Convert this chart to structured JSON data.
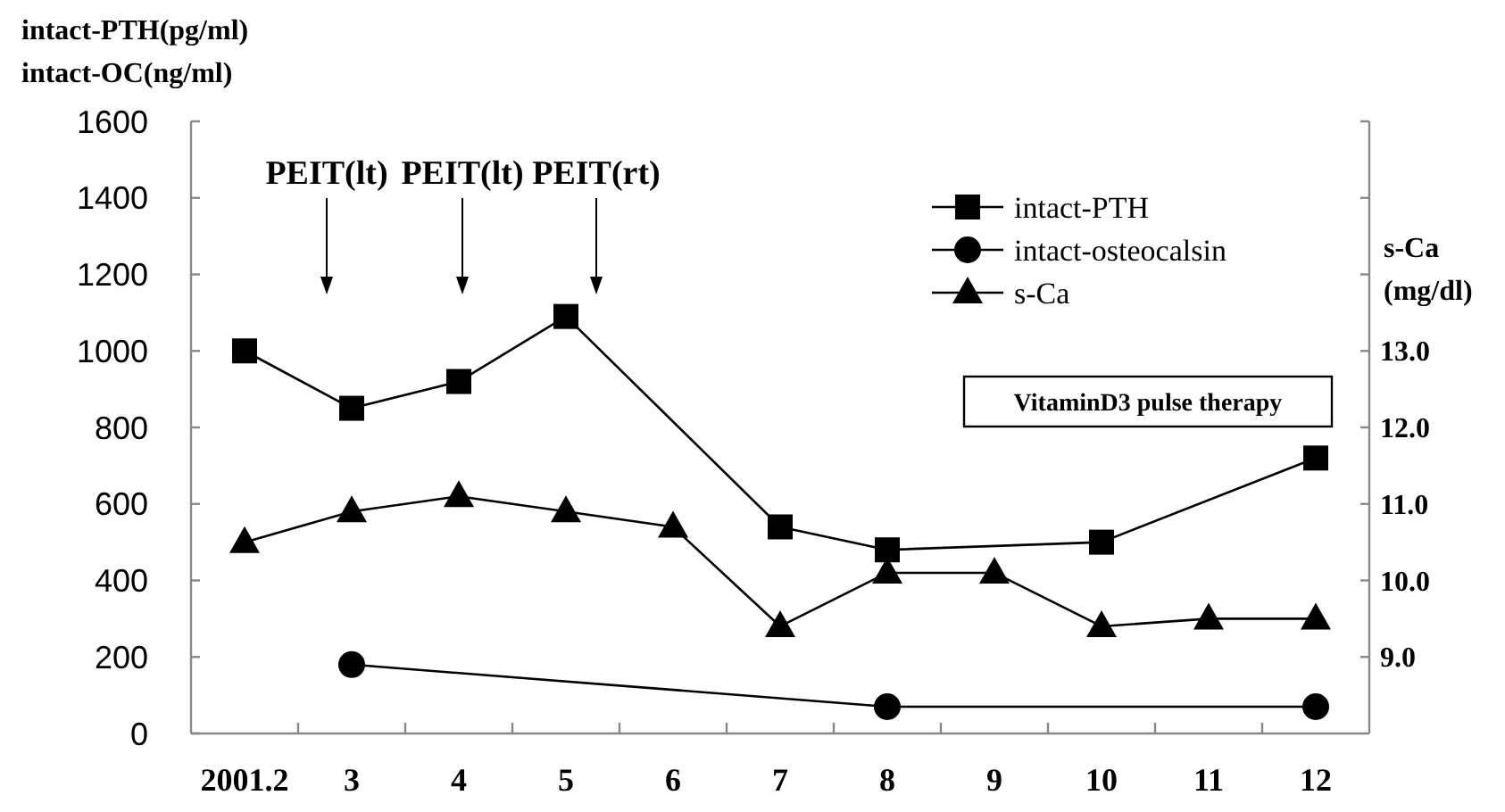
{
  "chart_data": {
    "type": "line",
    "ylabel": "intact-PTH(pg/ml)\nintact-OC(ng/ml)",
    "y2label": "s-Ca\n(mg/dl)",
    "categories": [
      "2001.2",
      "3",
      "4",
      "5",
      "6",
      "7",
      "8",
      "9",
      "10",
      "11",
      "12"
    ],
    "series": [
      {
        "name": "intact-PTH",
        "color": "#000000",
        "marker": "square",
        "values": [
          1000,
          850,
          920,
          1090,
          null,
          540,
          480,
          null,
          500,
          null,
          720
        ]
      },
      {
        "name": "intact-osteocalsin",
        "color": "#000000",
        "marker": "circle",
        "values": [
          null,
          180,
          null,
          null,
          null,
          null,
          70,
          null,
          null,
          null,
          70
        ]
      },
      {
        "name": "s-Ca",
        "color": "#000000",
        "marker": "triangle",
        "axis": "y2",
        "values": [
          10.5,
          10.9,
          11.1,
          10.9,
          10.7,
          9.4,
          10.1,
          10.1,
          9.4,
          9.5,
          9.5
        ]
      }
    ],
    "ylim": [
      0,
      1600
    ],
    "yticks": [
      0,
      200,
      400,
      600,
      800,
      1000,
      1200,
      1400,
      1600
    ],
    "y2lim": [
      8,
      16
    ],
    "y2ticks": [
      {
        "value": 9,
        "label": "9.0"
      },
      {
        "value": 10,
        "label": "10.0"
      },
      {
        "value": 11,
        "label": "11.0"
      },
      {
        "value": 12,
        "label": "12.0"
      },
      {
        "value": 13,
        "label": "13.0"
      },
      {
        "value": 14,
        "label": null
      },
      {
        "value": 15,
        "label": null
      },
      {
        "value": 16,
        "label": null
      }
    ],
    "annotations": [
      "PEIT(lt)",
      "PEIT(lt)",
      "PEIT(rt)",
      "VitaminD3 pulse therapy"
    ],
    "legend": "top right",
    "grid": false,
    "line_style": "solid"
  }
}
